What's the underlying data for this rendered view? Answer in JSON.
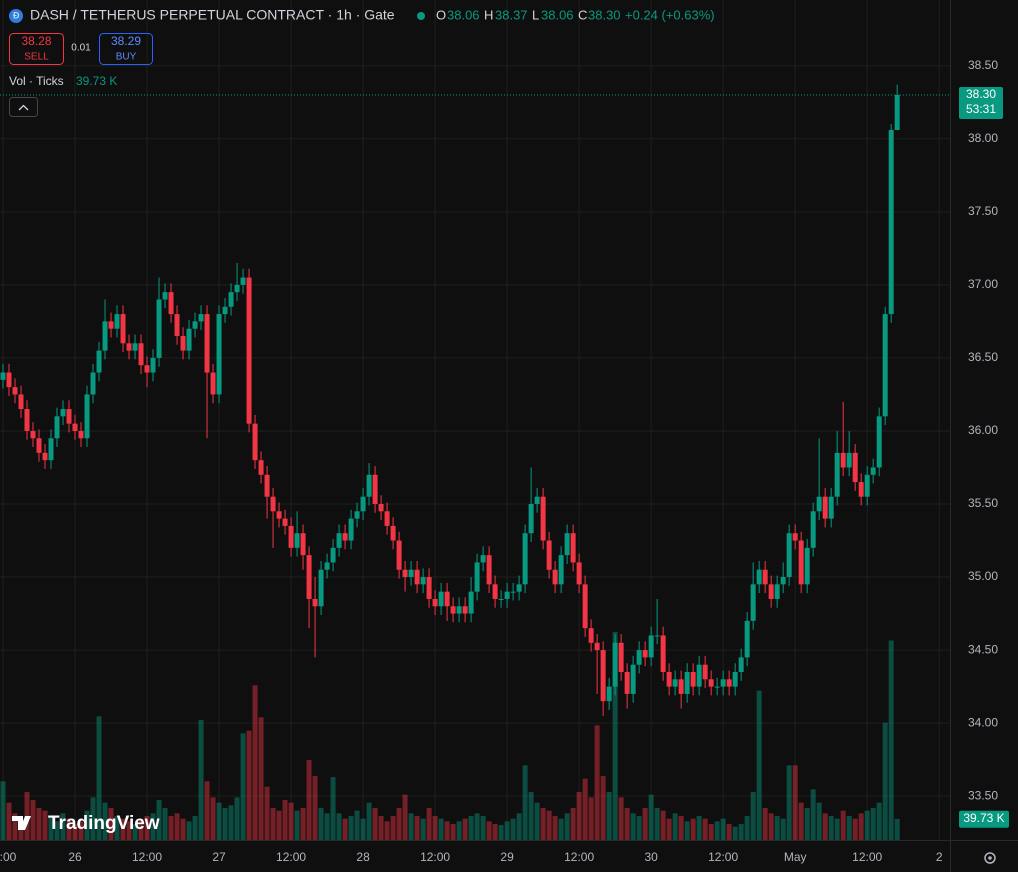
{
  "header": {
    "symbol": "DASH / TETHERUS PERPETUAL CONTRACT · 1h · Gate",
    "o_label": "O",
    "o_value": "38.06",
    "h_label": "H",
    "h_value": "38.37",
    "l_label": "L",
    "l_value": "38.06",
    "c_label": "C",
    "c_value": "38.30",
    "change": "+0.24 (+0.63%)",
    "sell_price": "38.28",
    "sell": "SELL",
    "spread": "0.01",
    "buy_price": "38.29",
    "buy": "BUY",
    "volume_name": "Vol · Ticks",
    "volume_value": "39.73 K",
    "logo": "TradingView"
  },
  "chart_data": {
    "type": "candlestick",
    "up_color": "#089981",
    "down_color": "#f23645",
    "grid": true,
    "price_label": "38.30",
    "countdown": "53:31",
    "volume_label": "39.73 K",
    "ylim": [
      33.2,
      38.95
    ],
    "yticks": [
      {
        "value": 33.5,
        "label": "33.50"
      },
      {
        "value": 34,
        "label": "34.00"
      },
      {
        "value": 34.5,
        "label": "34.50"
      },
      {
        "value": 35,
        "label": "35.00"
      },
      {
        "value": 35.5,
        "label": "35.50"
      },
      {
        "value": 36,
        "label": "36.00"
      },
      {
        "value": 36.5,
        "label": "36.50"
      },
      {
        "value": 37,
        "label": "37.00"
      },
      {
        "value": 37.5,
        "label": "37.50"
      },
      {
        "value": 38,
        "label": "38.00"
      },
      {
        "value": 38.5,
        "label": "38.50"
      }
    ],
    "xlim": [
      -0.5,
      157.8
    ],
    "xticks": [
      {
        "value": 0,
        "label": ":00"
      },
      {
        "value": 12,
        "label": "26"
      },
      {
        "value": 24,
        "label": "12:00"
      },
      {
        "value": 36,
        "label": "27"
      },
      {
        "value": 48,
        "label": "12:00"
      },
      {
        "value": 60,
        "label": "28"
      },
      {
        "value": 72,
        "label": "12:00"
      },
      {
        "value": 84,
        "label": "29"
      },
      {
        "value": 96,
        "label": "12:00"
      },
      {
        "value": 108,
        "label": "30"
      },
      {
        "value": 120,
        "label": "12:00"
      },
      {
        "value": 132,
        "label": "May"
      },
      {
        "value": 144,
        "label": "12:00"
      },
      {
        "value": 156,
        "label": "2"
      }
    ],
    "open": [
      36.35,
      36.4,
      36.3,
      36.25,
      36.15,
      36.0,
      35.95,
      35.85,
      35.8,
      35.95,
      36.1,
      36.15,
      36.05,
      36.0,
      35.95,
      36.25,
      36.4,
      36.55,
      36.75,
      36.7,
      36.8,
      36.6,
      36.55,
      36.6,
      36.45,
      36.4,
      36.5,
      36.9,
      36.95,
      36.8,
      36.65,
      36.55,
      36.7,
      36.75,
      36.8,
      36.4,
      36.25,
      36.8,
      36.85,
      36.95,
      37.0,
      37.05,
      36.05,
      35.8,
      35.7,
      35.55,
      35.45,
      35.4,
      35.35,
      35.2,
      35.3,
      35.15,
      34.85,
      34.8,
      35.05,
      35.1,
      35.2,
      35.3,
      35.25,
      35.4,
      35.45,
      35.55,
      35.7,
      35.5,
      35.45,
      35.35,
      35.25,
      35.05,
      35.0,
      35.05,
      34.95,
      35.0,
      34.85,
      34.8,
      34.9,
      34.8,
      34.75,
      34.8,
      34.75,
      34.9,
      35.1,
      35.15,
      34.95,
      34.85,
      34.85,
      34.9,
      34.9,
      34.95,
      35.3,
      35.5,
      35.55,
      35.25,
      35.05,
      34.95,
      35.15,
      35.3,
      35.1,
      34.95,
      34.65,
      34.55,
      34.5,
      34.15,
      34.25,
      34.55,
      34.35,
      34.2,
      34.4,
      34.5,
      34.45,
      34.6,
      34.6,
      34.35,
      34.25,
      34.3,
      34.2,
      34.35,
      34.25,
      34.4,
      34.3,
      34.25,
      34.25,
      34.3,
      34.25,
      34.35,
      34.45,
      34.7,
      34.95,
      35.05,
      34.95,
      34.85,
      34.95,
      35.0,
      35.3,
      35.25,
      34.95,
      35.2,
      35.45,
      35.55,
      35.4,
      35.55,
      35.85,
      35.75,
      35.85,
      35.65,
      35.55,
      35.7,
      35.75,
      36.1,
      36.8,
      38.06
    ],
    "high": [
      36.46,
      36.46,
      36.36,
      36.31,
      36.21,
      36.06,
      36.01,
      35.91,
      36.01,
      36.16,
      36.21,
      36.21,
      36.11,
      36.06,
      36.31,
      36.46,
      36.61,
      36.9,
      36.81,
      36.86,
      36.86,
      36.66,
      36.66,
      36.66,
      36.51,
      36.56,
      37.05,
      37.01,
      37.01,
      36.86,
      36.71,
      36.76,
      36.81,
      36.86,
      36.86,
      36.46,
      36.86,
      36.91,
      37.01,
      37.15,
      37.11,
      37.11,
      36.11,
      35.86,
      35.76,
      35.61,
      35.51,
      35.46,
      35.41,
      35.45,
      35.36,
      35.21,
      35.0,
      35.11,
      35.16,
      35.26,
      35.36,
      35.36,
      35.46,
      35.51,
      35.61,
      35.78,
      35.76,
      35.56,
      35.51,
      35.41,
      35.31,
      35.11,
      35.11,
      35.11,
      35.06,
      35.06,
      34.91,
      34.96,
      34.96,
      34.86,
      34.86,
      34.86,
      35.0,
      35.16,
      35.21,
      35.21,
      35.01,
      34.91,
      34.96,
      34.96,
      35.01,
      35.36,
      35.75,
      35.61,
      35.61,
      35.31,
      35.11,
      35.21,
      35.36,
      35.36,
      35.16,
      35.01,
      34.71,
      34.61,
      34.56,
      34.31,
      34.61,
      34.61,
      34.41,
      34.46,
      34.56,
      34.56,
      34.66,
      34.85,
      34.66,
      34.41,
      34.36,
      34.36,
      34.41,
      34.41,
      34.46,
      34.46,
      34.36,
      34.31,
      34.36,
      34.36,
      34.41,
      34.51,
      34.76,
      35.1,
      35.11,
      35.11,
      35.01,
      35.01,
      35.1,
      35.36,
      35.36,
      35.31,
      35.26,
      35.51,
      35.95,
      35.61,
      35.61,
      36.0,
      36.2,
      36.0,
      35.91,
      35.71,
      35.76,
      35.81,
      36.16,
      36.85,
      38.1,
      38.37
    ],
    "low": [
      36.29,
      36.24,
      36.19,
      36.09,
      35.94,
      35.89,
      35.79,
      35.74,
      35.74,
      35.89,
      36.04,
      35.99,
      35.94,
      35.89,
      35.89,
      36.19,
      36.34,
      36.49,
      36.64,
      36.64,
      36.54,
      36.49,
      36.49,
      36.39,
      36.3,
      36.34,
      36.44,
      36.84,
      36.74,
      36.59,
      36.49,
      36.49,
      36.64,
      36.69,
      35.95,
      36.19,
      36.19,
      36.74,
      36.79,
      36.89,
      36.94,
      35.99,
      35.74,
      35.64,
      35.4,
      35.2,
      35.34,
      35.29,
      35.14,
      35.14,
      35.05,
      34.65,
      34.45,
      34.74,
      34.99,
      35.04,
      35.14,
      35.19,
      35.19,
      35.34,
      35.39,
      35.49,
      35.44,
      35.39,
      35.29,
      35.19,
      34.99,
      34.9,
      34.94,
      34.89,
      34.89,
      34.79,
      34.74,
      34.74,
      34.7,
      34.69,
      34.69,
      34.69,
      34.69,
      34.84,
      35.04,
      34.89,
      34.79,
      34.79,
      34.79,
      34.84,
      34.84,
      34.89,
      35.24,
      35.44,
      35.19,
      34.99,
      34.89,
      34.89,
      35.09,
      35.04,
      34.89,
      34.59,
      34.49,
      34.2,
      34.05,
      34.09,
      34.19,
      34.29,
      34.1,
      34.14,
      34.34,
      34.39,
      34.39,
      34.54,
      34.29,
      34.19,
      34.19,
      34.1,
      34.14,
      34.19,
      34.19,
      34.24,
      34.19,
      34.19,
      34.19,
      34.19,
      34.19,
      34.29,
      34.39,
      34.64,
      34.89,
      34.89,
      34.79,
      34.79,
      34.89,
      34.94,
      35.19,
      34.89,
      34.89,
      35.14,
      35.39,
      35.34,
      35.34,
      35.49,
      35.69,
      35.69,
      35.59,
      35.49,
      35.49,
      35.64,
      35.69,
      36.04,
      36.74,
      38.06
    ],
    "close": [
      36.4,
      36.3,
      36.25,
      36.15,
      36.0,
      35.95,
      35.85,
      35.8,
      35.95,
      36.1,
      36.15,
      36.05,
      36.0,
      35.95,
      36.25,
      36.4,
      36.55,
      36.75,
      36.7,
      36.8,
      36.6,
      36.55,
      36.6,
      36.45,
      36.4,
      36.5,
      36.9,
      36.95,
      36.8,
      36.65,
      36.55,
      36.7,
      36.75,
      36.8,
      36.4,
      36.25,
      36.8,
      36.85,
      36.95,
      37.0,
      37.05,
      36.05,
      35.8,
      35.7,
      35.55,
      35.45,
      35.4,
      35.35,
      35.2,
      35.3,
      35.15,
      34.85,
      34.8,
      35.05,
      35.1,
      35.2,
      35.3,
      35.25,
      35.4,
      35.45,
      35.55,
      35.7,
      35.5,
      35.45,
      35.35,
      35.25,
      35.05,
      35.0,
      35.05,
      34.95,
      35.0,
      34.85,
      34.8,
      34.9,
      34.8,
      34.75,
      34.8,
      34.75,
      34.9,
      35.1,
      35.15,
      34.95,
      34.85,
      34.85,
      34.9,
      34.9,
      34.95,
      35.3,
      35.5,
      35.55,
      35.25,
      35.05,
      34.95,
      35.15,
      35.3,
      35.1,
      34.95,
      34.65,
      34.55,
      34.5,
      34.15,
      34.25,
      34.55,
      34.35,
      34.2,
      34.4,
      34.5,
      34.45,
      34.6,
      34.6,
      34.35,
      34.25,
      34.3,
      34.2,
      34.35,
      34.25,
      34.4,
      34.3,
      34.25,
      34.25,
      34.3,
      34.25,
      34.35,
      34.45,
      34.7,
      34.95,
      35.05,
      34.95,
      34.85,
      34.95,
      35.0,
      35.3,
      35.25,
      34.95,
      35.2,
      35.45,
      35.55,
      35.4,
      35.55,
      35.85,
      35.75,
      35.85,
      35.65,
      35.55,
      35.7,
      35.75,
      36.1,
      36.8,
      38.06,
      38.3
    ],
    "volume": [
      110,
      70,
      50,
      40,
      90,
      75,
      60,
      55,
      45,
      35,
      50,
      40,
      30,
      35,
      55,
      80,
      232,
      70,
      60,
      45,
      40,
      35,
      30,
      40,
      45,
      50,
      75,
      60,
      45,
      50,
      40,
      35,
      45,
      225,
      110,
      80,
      70,
      60,
      65,
      80,
      200,
      205,
      290,
      230,
      100,
      60,
      55,
      75,
      70,
      55,
      60,
      150,
      120,
      60,
      50,
      118,
      50,
      40,
      45,
      55,
      40,
      70,
      60,
      45,
      35,
      45,
      60,
      85,
      50,
      45,
      40,
      60,
      45,
      40,
      35,
      30,
      35,
      40,
      45,
      50,
      45,
      35,
      30,
      28,
      35,
      40,
      50,
      140,
      90,
      70,
      60,
      55,
      45,
      40,
      50,
      60,
      90,
      115,
      80,
      215,
      120,
      90,
      390,
      80,
      60,
      50,
      45,
      60,
      85,
      60,
      55,
      40,
      50,
      45,
      35,
      40,
      45,
      40,
      30,
      35,
      40,
      30,
      25,
      30,
      45,
      90,
      280,
      60,
      50,
      45,
      40,
      140,
      140,
      70,
      60,
      95,
      70,
      50,
      45,
      40,
      55,
      45,
      40,
      50,
      55,
      60,
      70,
      220,
      374,
      39.73
    ]
  }
}
